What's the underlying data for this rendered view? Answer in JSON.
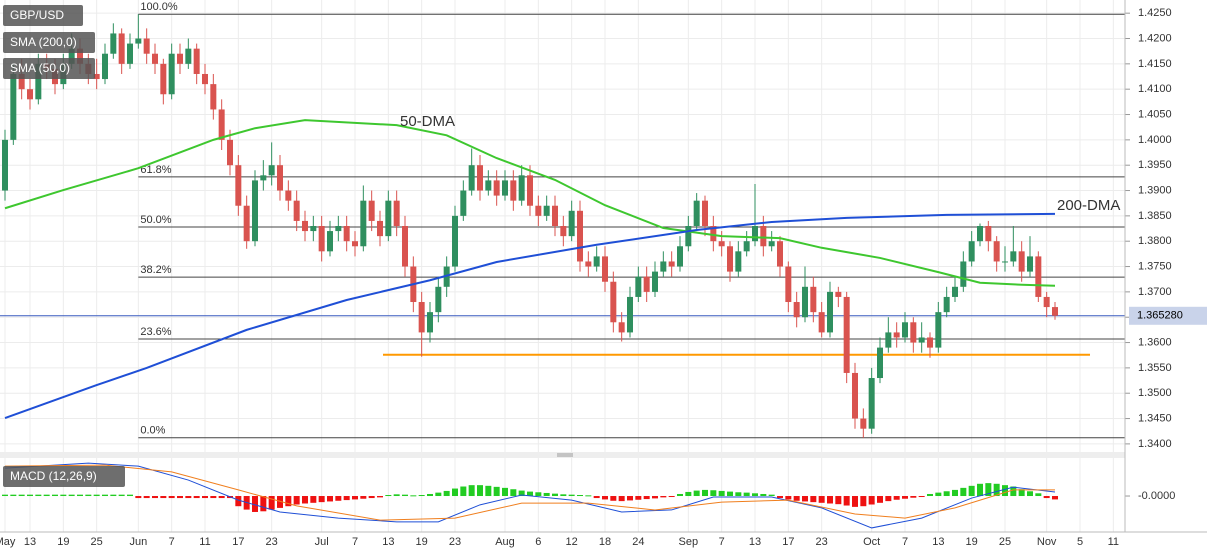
{
  "chart_data": {
    "type": "candlestick",
    "title": "GBP/USD",
    "up_color": "#2f8f5f",
    "down_color": "#d9534f",
    "ylim": [
      1.3384,
      1.4276
    ],
    "yticks": [
      {
        "value": 1.425,
        "label": "1.4250"
      },
      {
        "value": 1.42,
        "label": "1.4200"
      },
      {
        "value": 1.415,
        "label": "1.4150"
      },
      {
        "value": 1.41,
        "label": "1.4100"
      },
      {
        "value": 1.405,
        "label": "1.4050"
      },
      {
        "value": 1.4,
        "label": "1.4000"
      },
      {
        "value": 1.395,
        "label": "1.3950"
      },
      {
        "value": 1.39,
        "label": "1.3900"
      },
      {
        "value": 1.385,
        "label": "1.3850"
      },
      {
        "value": 1.38,
        "label": "1.3800"
      },
      {
        "value": 1.375,
        "label": "1.3750"
      },
      {
        "value": 1.37,
        "label": "1.3700"
      },
      {
        "value": 1.365,
        "label": "1.3650"
      },
      {
        "value": 1.36,
        "label": "1.3600"
      },
      {
        "value": 1.355,
        "label": "1.3550"
      },
      {
        "value": 1.35,
        "label": "1.3500"
      },
      {
        "value": 1.345,
        "label": "1.3450"
      },
      {
        "value": 1.34,
        "label": "1.3400"
      }
    ],
    "grid": true,
    "categories": [
      "May",
      null,
      null,
      "13",
      null,
      null,
      null,
      "19",
      null,
      null,
      null,
      "25",
      null,
      null,
      null,
      null,
      "Jun",
      null,
      null,
      null,
      "7",
      null,
      null,
      null,
      "11",
      null,
      null,
      null,
      "17",
      null,
      null,
      null,
      "23",
      null,
      null,
      null,
      null,
      null,
      "Jul",
      null,
      null,
      null,
      "7",
      null,
      null,
      null,
      "13",
      null,
      null,
      null,
      "19",
      null,
      null,
      null,
      "23",
      null,
      null,
      null,
      null,
      null,
      "Aug",
      null,
      null,
      null,
      "6",
      null,
      null,
      null,
      "12",
      null,
      null,
      null,
      "18",
      null,
      null,
      null,
      "24",
      null,
      null,
      null,
      null,
      null,
      "Sep",
      null,
      null,
      null,
      "7",
      null,
      null,
      null,
      "13",
      null,
      null,
      null,
      "17",
      null,
      null,
      null,
      "23",
      null,
      null,
      null,
      null,
      null,
      "Oct",
      null,
      null,
      null,
      "7",
      null,
      null,
      null,
      "13",
      null,
      null,
      null,
      "19",
      null,
      null,
      null,
      "25",
      null,
      null,
      null,
      null,
      "Nov",
      null,
      null,
      null,
      "5",
      null,
      null,
      null,
      "11"
    ],
    "ohlc": [
      [
        1.39,
        1.402,
        1.388,
        1.4
      ],
      [
        1.4,
        1.415,
        1.399,
        1.413
      ],
      [
        1.413,
        1.416,
        1.408,
        1.41
      ],
      [
        1.41,
        1.412,
        1.406,
        1.408
      ],
      [
        1.408,
        1.417,
        1.407,
        1.415
      ],
      [
        1.415,
        1.417,
        1.412,
        1.414
      ],
      [
        1.414,
        1.416,
        1.409,
        1.411
      ],
      [
        1.411,
        1.417,
        1.41,
        1.415
      ],
      [
        1.415,
        1.421,
        1.414,
        1.418
      ],
      [
        1.418,
        1.42,
        1.413,
        1.415
      ],
      [
        1.415,
        1.417,
        1.411,
        1.413
      ],
      [
        1.413,
        1.416,
        1.41,
        1.412
      ],
      [
        1.412,
        1.419,
        1.411,
        1.417
      ],
      [
        1.417,
        1.423,
        1.416,
        1.421
      ],
      [
        1.421,
        1.422,
        1.413,
        1.415
      ],
      [
        1.415,
        1.421,
        1.414,
        1.419
      ],
      [
        1.419,
        1.4248,
        1.418,
        1.42
      ],
      [
        1.42,
        1.422,
        1.415,
        1.417
      ],
      [
        1.417,
        1.419,
        1.413,
        1.415
      ],
      [
        1.415,
        1.416,
        1.407,
        1.409
      ],
      [
        1.409,
        1.419,
        1.408,
        1.417
      ],
      [
        1.417,
        1.419,
        1.413,
        1.415
      ],
      [
        1.415,
        1.42,
        1.414,
        1.418
      ],
      [
        1.418,
        1.419,
        1.411,
        1.413
      ],
      [
        1.413,
        1.415,
        1.409,
        1.411
      ],
      [
        1.411,
        1.413,
        1.404,
        1.406
      ],
      [
        1.406,
        1.408,
        1.398,
        1.4
      ],
      [
        1.4,
        1.402,
        1.393,
        1.395
      ],
      [
        1.395,
        1.397,
        1.385,
        1.387
      ],
      [
        1.387,
        1.389,
        1.3785,
        1.38
      ],
      [
        1.38,
        1.394,
        1.379,
        1.392
      ],
      [
        1.392,
        1.396,
        1.39,
        1.393
      ],
      [
        1.393,
        1.3995,
        1.391,
        1.395
      ],
      [
        1.395,
        1.397,
        1.388,
        1.39
      ],
      [
        1.39,
        1.392,
        1.386,
        1.388
      ],
      [
        1.388,
        1.39,
        1.382,
        1.384
      ],
      [
        1.384,
        1.386,
        1.38,
        1.382
      ],
      [
        1.382,
        1.385,
        1.38,
        1.383
      ],
      [
        1.383,
        1.385,
        1.376,
        1.378
      ],
      [
        1.378,
        1.384,
        1.377,
        1.382
      ],
      [
        1.382,
        1.385,
        1.38,
        1.383
      ],
      [
        1.383,
        1.385,
        1.378,
        1.38
      ],
      [
        1.38,
        1.382,
        1.377,
        1.379
      ],
      [
        1.379,
        1.391,
        1.378,
        1.388
      ],
      [
        1.388,
        1.39,
        1.382,
        1.384
      ],
      [
        1.384,
        1.386,
        1.379,
        1.381
      ],
      [
        1.381,
        1.39,
        1.38,
        1.388
      ],
      [
        1.388,
        1.39,
        1.381,
        1.383
      ],
      [
        1.383,
        1.385,
        1.373,
        1.375
      ],
      [
        1.375,
        1.377,
        1.366,
        1.368
      ],
      [
        1.368,
        1.37,
        1.3572,
        1.362
      ],
      [
        1.362,
        1.368,
        1.36,
        1.366
      ],
      [
        1.366,
        1.373,
        1.364,
        1.371
      ],
      [
        1.371,
        1.377,
        1.369,
        1.375
      ],
      [
        1.375,
        1.387,
        1.374,
        1.385
      ],
      [
        1.385,
        1.392,
        1.384,
        1.39
      ],
      [
        1.39,
        1.3983,
        1.389,
        1.395
      ],
      [
        1.395,
        1.397,
        1.388,
        1.39
      ],
      [
        1.39,
        1.394,
        1.389,
        1.392
      ],
      [
        1.392,
        1.394,
        1.387,
        1.389
      ],
      [
        1.389,
        1.394,
        1.388,
        1.392
      ],
      [
        1.392,
        1.394,
        1.386,
        1.388
      ],
      [
        1.388,
        1.395,
        1.387,
        1.393
      ],
      [
        1.393,
        1.395,
        1.385,
        1.387
      ],
      [
        1.387,
        1.389,
        1.383,
        1.385
      ],
      [
        1.385,
        1.389,
        1.384,
        1.387
      ],
      [
        1.387,
        1.389,
        1.381,
        1.383
      ],
      [
        1.383,
        1.385,
        1.379,
        1.381
      ],
      [
        1.381,
        1.388,
        1.38,
        1.386
      ],
      [
        1.386,
        1.388,
        1.374,
        1.376
      ],
      [
        1.376,
        1.378,
        1.373,
        1.375
      ],
      [
        1.375,
        1.379,
        1.374,
        1.377
      ],
      [
        1.377,
        1.379,
        1.37,
        1.372
      ],
      [
        1.372,
        1.374,
        1.362,
        1.364
      ],
      [
        1.364,
        1.366,
        1.3602,
        1.362
      ],
      [
        1.362,
        1.371,
        1.361,
        1.369
      ],
      [
        1.369,
        1.375,
        1.368,
        1.373
      ],
      [
        1.373,
        1.375,
        1.368,
        1.37
      ],
      [
        1.37,
        1.376,
        1.369,
        1.374
      ],
      [
        1.374,
        1.378,
        1.373,
        1.376
      ],
      [
        1.376,
        1.378,
        1.373,
        1.375
      ],
      [
        1.375,
        1.381,
        1.374,
        1.379
      ],
      [
        1.379,
        1.385,
        1.378,
        1.383
      ],
      [
        1.383,
        1.3895,
        1.382,
        1.388
      ],
      [
        1.388,
        1.389,
        1.381,
        1.383
      ],
      [
        1.383,
        1.385,
        1.378,
        1.38
      ],
      [
        1.38,
        1.382,
        1.377,
        1.379
      ],
      [
        1.379,
        1.38,
        1.372,
        1.374
      ],
      [
        1.374,
        1.38,
        1.373,
        1.378
      ],
      [
        1.378,
        1.382,
        1.377,
        1.38
      ],
      [
        1.38,
        1.3913,
        1.379,
        1.383
      ],
      [
        1.383,
        1.385,
        1.377,
        1.379
      ],
      [
        1.379,
        1.382,
        1.378,
        1.38
      ],
      [
        1.38,
        1.381,
        1.373,
        1.375
      ],
      [
        1.375,
        1.376,
        1.366,
        1.368
      ],
      [
        1.368,
        1.37,
        1.363,
        1.365
      ],
      [
        1.365,
        1.375,
        1.364,
        1.371
      ],
      [
        1.371,
        1.373,
        1.364,
        1.366
      ],
      [
        1.366,
        1.368,
        1.361,
        1.362
      ],
      [
        1.362,
        1.372,
        1.361,
        1.37
      ],
      [
        1.37,
        1.371,
        1.367,
        1.369
      ],
      [
        1.369,
        1.37,
        1.352,
        1.354
      ],
      [
        1.354,
        1.356,
        1.343,
        1.345
      ],
      [
        1.345,
        1.347,
        1.3412,
        1.343
      ],
      [
        1.343,
        1.355,
        1.342,
        1.353
      ],
      [
        1.353,
        1.361,
        1.352,
        1.359
      ],
      [
        1.359,
        1.365,
        1.358,
        1.362
      ],
      [
        1.362,
        1.364,
        1.359,
        1.361
      ],
      [
        1.361,
        1.366,
        1.36,
        1.364
      ],
      [
        1.364,
        1.365,
        1.358,
        1.36
      ],
      [
        1.36,
        1.364,
        1.358,
        1.361
      ],
      [
        1.361,
        1.362,
        1.357,
        1.359
      ],
      [
        1.359,
        1.368,
        1.358,
        1.366
      ],
      [
        1.366,
        1.371,
        1.365,
        1.369
      ],
      [
        1.369,
        1.373,
        1.368,
        1.371
      ],
      [
        1.371,
        1.378,
        1.37,
        1.376
      ],
      [
        1.376,
        1.382,
        1.375,
        1.38
      ],
      [
        1.38,
        1.3835,
        1.379,
        1.383
      ],
      [
        1.383,
        1.384,
        1.378,
        1.38
      ],
      [
        1.38,
        1.381,
        1.374,
        1.376
      ],
      [
        1.376,
        1.379,
        1.374,
        1.376
      ],
      [
        1.376,
        1.383,
        1.375,
        1.378
      ],
      [
        1.378,
        1.38,
        1.372,
        1.374
      ],
      [
        1.374,
        1.381,
        1.373,
        1.377
      ],
      [
        1.377,
        1.378,
        1.368,
        1.369
      ],
      [
        1.369,
        1.37,
        1.365,
        1.367
      ],
      [
        1.367,
        1.368,
        1.3645,
        1.3653
      ],
      null,
      null,
      null,
      null,
      null,
      null,
      null
    ],
    "series": [
      {
        "name": "50-DMA",
        "legend": "SMA (50,0)",
        "color": "#3ec72f",
        "x": [
          0,
          7,
          16,
          25,
          30,
          36,
          47,
          53,
          59,
          66,
          72,
          79,
          86,
          93,
          98,
          105,
          112,
          117,
          122,
          126
        ],
        "values": [
          1.3865,
          1.3901,
          1.3944,
          1.4,
          1.4023,
          1.4039,
          1.4029,
          1.4009,
          1.3964,
          1.3921,
          1.3871,
          1.3826,
          1.381,
          1.3806,
          1.3787,
          1.3767,
          1.3739,
          1.3718,
          1.3714,
          1.3712
        ]
      },
      {
        "name": "200-DMA",
        "legend": "SMA (200,0)",
        "color": "#1f4fd6",
        "x": [
          0,
          11,
          17,
          29,
          41,
          51,
          59,
          71,
          83,
          92,
          101,
          113,
          126
        ],
        "values": [
          1.3451,
          1.3516,
          1.355,
          1.3625,
          1.3684,
          1.3723,
          1.3759,
          1.3793,
          1.3822,
          1.3838,
          1.3846,
          1.3852,
          1.3854
        ]
      }
    ],
    "fibonacci": [
      {
        "label": "100.0%",
        "price": 1.4248
      },
      {
        "label": "61.8%",
        "price": 1.3927
      },
      {
        "label": "50.0%",
        "price": 1.3828
      },
      {
        "label": "38.2%",
        "price": 1.3729
      },
      {
        "label": "23.6%",
        "price": 1.3607
      },
      {
        "label": "0.0%",
        "price": 1.3412
      }
    ],
    "support": {
      "price": 1.3576,
      "color": "#ff9900"
    },
    "last_price": {
      "value": 1.36528,
      "label": "1.365280"
    },
    "macd": {
      "title": "MACD (12,26,9)",
      "ylim": [
        -0.0106,
        0.0112
      ],
      "yticks": [
        {
          "value": 0,
          "label": "-0.0000"
        }
      ],
      "histogram": [
        0.0004,
        0.0004,
        0.0004,
        0.0004,
        0.0004,
        0.0004,
        0.0004,
        0.0004,
        0.0004,
        0.0004,
        0.0004,
        0.0004,
        0.0004,
        0.0004,
        0.0004,
        0.0004,
        -0.0006,
        -0.0006,
        -0.0006,
        -0.0006,
        -0.0006,
        -0.0006,
        -0.0006,
        -0.0006,
        -0.0006,
        -0.0006,
        -0.0006,
        -0.0006,
        -0.003,
        -0.004,
        -0.0047,
        -0.0045,
        -0.004,
        -0.0035,
        -0.003,
        -0.0025,
        -0.0022,
        -0.002,
        -0.0018,
        -0.0016,
        -0.0014,
        -0.0012,
        -0.001,
        -0.0008,
        -0.0006,
        -0.0004,
        0.0003,
        0.0005,
        0.0004,
        0.0002,
        0.0003,
        0.0006,
        0.001,
        0.0015,
        0.0022,
        0.0028,
        0.0032,
        0.0032,
        0.003,
        0.0027,
        0.0024,
        0.002,
        0.0016,
        0.0013,
        0.0011,
        0.0009,
        0.0007,
        0.0005,
        0.0004,
        0.0003,
        0.0002,
        -0.0006,
        -0.001,
        -0.0014,
        -0.0015,
        -0.0013,
        -0.0011,
        -0.0009,
        -0.0007,
        -0.0004,
        -0.0002,
        0.0006,
        0.0012,
        0.0016,
        0.0018,
        0.0017,
        0.0015,
        0.0013,
        0.0011,
        0.001,
        0.0008,
        0.0006,
        0.0004,
        -0.0006,
        -0.001,
        -0.0014,
        -0.0016,
        -0.0018,
        -0.002,
        -0.0022,
        -0.0024,
        -0.0028,
        -0.0032,
        -0.003,
        -0.0025,
        -0.002,
        -0.0015,
        -0.0011,
        -0.0008,
        -0.0005,
        -0.0002,
        0.0006,
        0.001,
        0.0014,
        0.0018,
        0.0024,
        0.003,
        0.0036,
        0.0038,
        0.0036,
        0.0032,
        0.0028,
        0.002,
        0.0014,
        0.0008,
        -0.0006,
        -0.001,
        null,
        null,
        null,
        null,
        null,
        null,
        null
      ],
      "up_color": "#22cc22",
      "down_color": "#ee1111",
      "lines": [
        {
          "color": "#1f4fd6",
          "x": [
            0,
            10,
            16,
            22,
            28,
            33,
            40,
            47,
            52,
            57,
            62,
            68,
            74,
            80,
            85,
            92,
            98,
            104,
            110,
            116,
            121,
            126
          ],
          "values": [
            0.0082,
            0.0097,
            0.0088,
            0.0047,
            -0.0012,
            -0.0047,
            -0.0065,
            -0.0076,
            -0.0076,
            -0.0026,
            0.0003,
            -0.0012,
            -0.0047,
            -0.0041,
            -0.0003,
            -0.0003,
            -0.0035,
            -0.0094,
            -0.0065,
            -0.0006,
            0.0026,
            0.0012
          ]
        },
        {
          "color": "#f07f1e",
          "x": [
            0,
            12,
            20,
            28,
            35,
            45,
            54,
            62,
            70,
            78,
            86,
            94,
            102,
            108,
            114,
            121,
            126
          ],
          "values": [
            0.0088,
            0.0091,
            0.0071,
            0.0018,
            -0.0029,
            -0.0071,
            -0.0065,
            -0.0021,
            -0.0021,
            -0.0041,
            -0.0018,
            -0.0012,
            -0.0053,
            -0.0065,
            -0.0035,
            0.0018,
            0.0018
          ]
        }
      ]
    }
  }
}
